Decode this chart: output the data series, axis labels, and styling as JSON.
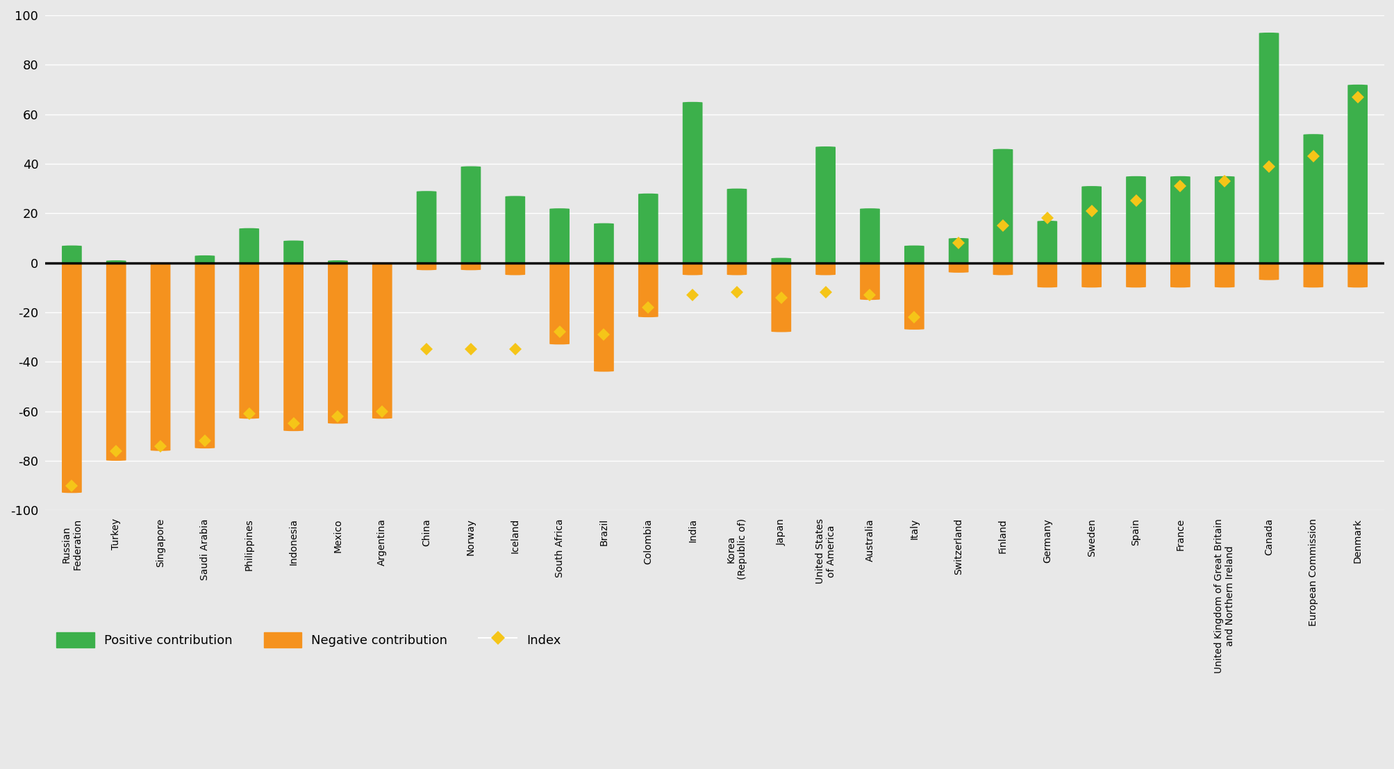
{
  "countries": [
    "Russian\nFederation",
    "Turkey",
    "Singapore",
    "Saudi Arabia",
    "Philippines",
    "Indonesia",
    "Mexico",
    "Argentina",
    "China",
    "Norway",
    "Iceland",
    "South Africa",
    "Brazil",
    "Colombia",
    "India",
    "Korea\n(Republic of)",
    "Japan",
    "United States\nof America",
    "Australia",
    "Italy",
    "Switzerland",
    "Finland",
    "Germany",
    "Sweden",
    "Spain",
    "France",
    "United Kingdom of Great Britain\nand Northern Ireland",
    "Canada",
    "European Commission",
    "Denmark"
  ],
  "positive": [
    7,
    1,
    0,
    3,
    14,
    9,
    1,
    0,
    29,
    39,
    27,
    22,
    16,
    28,
    65,
    30,
    2,
    47,
    22,
    7,
    10,
    46,
    17,
    31,
    35,
    35,
    35,
    93,
    52,
    72
  ],
  "negative": [
    -93,
    -80,
    -76,
    -75,
    -63,
    -68,
    -65,
    -63,
    -3,
    -3,
    -5,
    -33,
    -44,
    -22,
    -5,
    -5,
    -28,
    -5,
    -15,
    -27,
    -4,
    -5,
    -10,
    -10,
    -10,
    -10,
    -10,
    -7,
    -10,
    -10
  ],
  "index": [
    -90,
    -76,
    -74,
    -72,
    -61,
    -65,
    -62,
    -60,
    -35,
    -35,
    -35,
    -28,
    -29,
    -18,
    -13,
    -12,
    -14,
    -12,
    -13,
    -22,
    8,
    15,
    18,
    21,
    25,
    31,
    33,
    39,
    43,
    67
  ],
  "positive_color": "#3cb04b",
  "negative_color": "#f5921e",
  "index_color": "#f5c518",
  "background_color": "#e8e8e8",
  "ylim": [
    -100,
    100
  ],
  "yticks": [
    -100,
    -80,
    -60,
    -40,
    -20,
    0,
    20,
    40,
    60,
    80,
    100
  ]
}
